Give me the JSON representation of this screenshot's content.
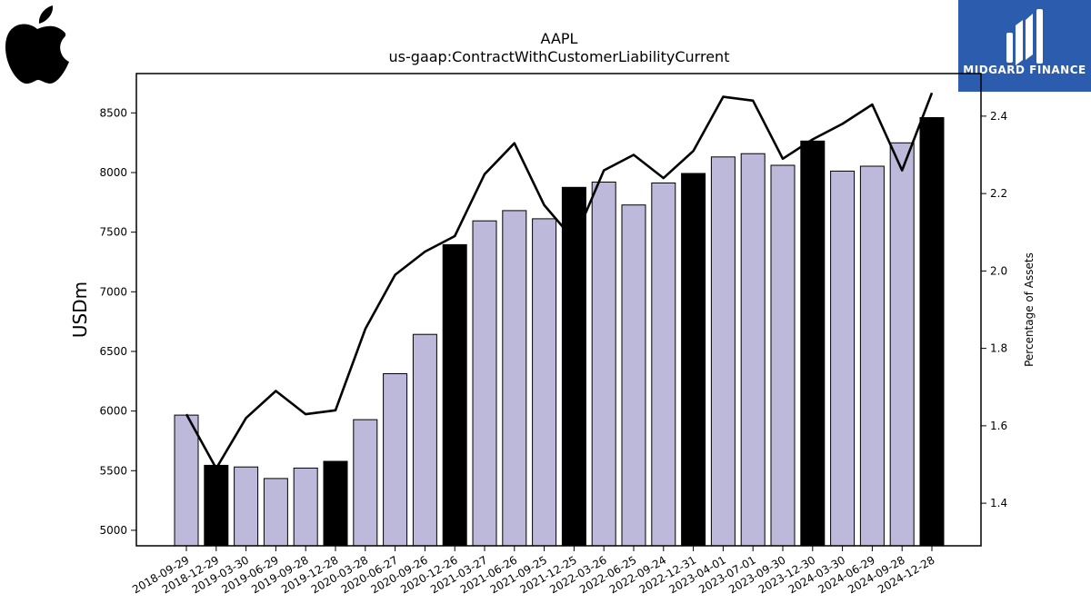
{
  "chart_data": {
    "type": "bar",
    "title": "AAPL",
    "subtitle": "us-gaap:ContractWithCustomerLiabilityCurrent",
    "ylabel": "USDm",
    "y2label": "Percentage of Assets",
    "ylim": [
      4870,
      8830
    ],
    "y2lim": [
      1.29,
      2.51
    ],
    "yticks": [
      5000,
      5500,
      6000,
      6500,
      7000,
      7500,
      8000,
      8500
    ],
    "y2ticks": [
      1.4,
      1.6,
      1.8,
      2.0,
      2.2,
      2.4
    ],
    "categories": [
      "2018-09-29",
      "2018-12-29",
      "2019-03-30",
      "2019-06-29",
      "2019-09-28",
      "2019-12-28",
      "2020-03-28",
      "2020-06-27",
      "2020-09-26",
      "2020-12-26",
      "2021-03-27",
      "2021-06-26",
      "2021-09-25",
      "2021-12-25",
      "2022-03-26",
      "2022-06-25",
      "2022-09-24",
      "2022-12-31",
      "2023-04-01",
      "2023-07-01",
      "2023-09-30",
      "2023-12-30",
      "2024-03-30",
      "2024-06-29",
      "2024-09-28",
      "2024-12-28"
    ],
    "series": [
      {
        "type": "bar",
        "values": [
          5966,
          5545,
          5531,
          5434,
          5522,
          5578,
          5928,
          6313,
          6643,
          7395,
          7595,
          7681,
          7612,
          7876,
          7920,
          7728,
          7912,
          7992,
          8131,
          8158,
          8061,
          8264,
          8012,
          8053,
          8249,
          8461
        ],
        "highlight": [
          false,
          true,
          false,
          false,
          false,
          true,
          false,
          false,
          false,
          true,
          false,
          false,
          false,
          true,
          false,
          false,
          false,
          true,
          false,
          false,
          false,
          true,
          false,
          false,
          false,
          true
        ],
        "color": "#bdb9da",
        "highlight_color": "#000000"
      },
      {
        "type": "line",
        "axis": "right",
        "values": [
          1.63,
          1.49,
          1.62,
          1.69,
          1.63,
          1.64,
          1.85,
          1.99,
          2.05,
          2.09,
          2.25,
          2.33,
          2.17,
          2.08,
          2.26,
          2.3,
          2.24,
          2.31,
          2.45,
          2.44,
          2.29,
          2.34,
          2.38,
          2.43,
          2.26,
          2.46
        ],
        "color": "#000000"
      }
    ]
  },
  "logo": {
    "brand": "MIDGARD FINANCE",
    "brand_color": "#2c5cad"
  },
  "company_icon": "apple-logo-icon"
}
